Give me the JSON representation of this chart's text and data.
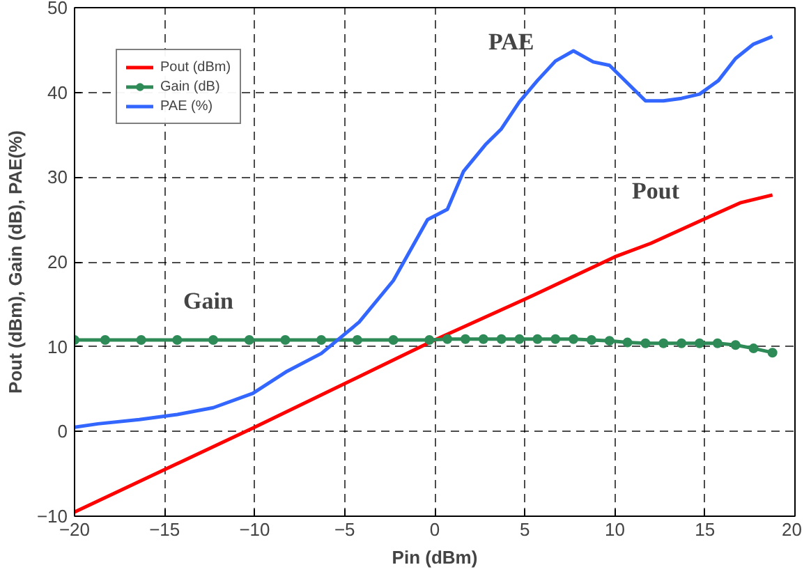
{
  "chart_data": {
    "type": "line",
    "xlabel": "Pin (dBm)",
    "ylabel": "Pout (dBm), Gain (dB), PAE(%)",
    "xlim": [
      -20,
      20
    ],
    "ylim": [
      -10,
      50
    ],
    "xticks": [
      -20,
      -15,
      -10,
      -5,
      0,
      5,
      10,
      15,
      20
    ],
    "yticks": [
      -10,
      0,
      10,
      20,
      30,
      40,
      50
    ],
    "grid": true,
    "legend": "top left",
    "line_style": "solid",
    "series": [
      {
        "name": "Pout (dBm)",
        "color": "#ff0000",
        "marker": "none",
        "x": [
          -20,
          -10,
          0,
          5,
          10,
          12,
          15,
          17,
          18.75
        ],
        "values": [
          -9.5,
          0.5,
          10.8,
          15.6,
          20.6,
          22.2,
          25.1,
          27,
          27.9
        ]
      },
      {
        "name": "Gain (dB)",
        "color": "#2e8b57",
        "marker": "circle",
        "x": [
          -20,
          -18.3,
          -16.3,
          -14.3,
          -12.3,
          -10.3,
          -8.3,
          -6.3,
          -4.3,
          -2.3,
          -0.3,
          0.7,
          1.7,
          2.7,
          3.7,
          4.7,
          5.7,
          6.7,
          7.7,
          8.7,
          9.7,
          10.7,
          11.7,
          12.7,
          13.7,
          14.7,
          15.7,
          16.7,
          17.7,
          18.75
        ],
        "values": [
          10.8,
          10.8,
          10.8,
          10.8,
          10.8,
          10.8,
          10.8,
          10.8,
          10.8,
          10.8,
          10.8,
          10.9,
          10.9,
          10.9,
          10.9,
          10.9,
          10.9,
          10.9,
          10.9,
          10.8,
          10.7,
          10.5,
          10.4,
          10.4,
          10.4,
          10.4,
          10.4,
          10.2,
          9.8,
          9.3
        ]
      },
      {
        "name": "PAE (%)",
        "color": "#3366ff",
        "marker": "none",
        "x": [
          -20,
          -18.7,
          -16.4,
          -14.3,
          -12.3,
          -10.1,
          -8.2,
          -6.3,
          -4.2,
          -2.3,
          -0.4,
          0.7,
          1.6,
          2.8,
          3.7,
          4.7,
          5.7,
          6.7,
          7.7,
          8.8,
          9.7,
          11.7,
          12.7,
          13.7,
          14.7,
          15.75,
          16.7,
          17.7,
          18.75
        ],
        "values": [
          0.5,
          0.9,
          1.4,
          2.0,
          2.8,
          4.5,
          7.1,
          9.2,
          12.9,
          17.8,
          25.0,
          26.2,
          30.7,
          33.8,
          35.7,
          38.9,
          41.4,
          43.7,
          44.9,
          43.6,
          43.2,
          39.0,
          39.0,
          39.3,
          39.8,
          41.4,
          44.0,
          45.7,
          46.6
        ]
      }
    ],
    "annotations": [
      "PAE",
      "Pout",
      "Gain"
    ]
  }
}
